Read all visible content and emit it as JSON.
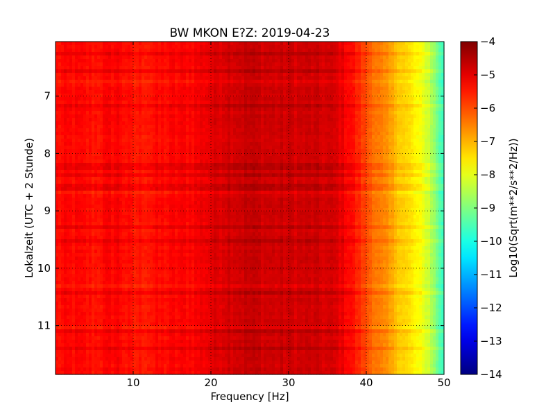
{
  "chart_data": {
    "type": "heatmap",
    "title": "BW MKON E?Z: 2019-04-23",
    "xlabel": "Frequency [Hz]",
    "ylabel": "Lokalzeit (UTC + 2 Stunde)",
    "colorbar_label": "Log10(Sqrt(m**2/s**2/Hz))",
    "xlim": [
      0,
      50
    ],
    "ylim": [
      11.85,
      6.05
    ],
    "y_inverted": true,
    "x_ticks": [
      10,
      20,
      30,
      40,
      50
    ],
    "x_tick_labels": [
      "10",
      "20",
      "30",
      "40",
      "50"
    ],
    "y_ticks": [
      7,
      8,
      9,
      10,
      11
    ],
    "y_tick_labels": [
      "7",
      "8",
      "9",
      "10",
      "11"
    ],
    "colorbar_range": [
      -14,
      -4
    ],
    "colorbar_ticks": [
      -4,
      -5,
      -6,
      -7,
      -8,
      -9,
      -10,
      -11,
      -12,
      -13,
      -14
    ],
    "colorbar_tick_labels": [
      "−4",
      "−5",
      "−6",
      "−7",
      "−8",
      "−9",
      "−10",
      "−11",
      "−12",
      "−13",
      "−14"
    ],
    "colormap": "jet",
    "grid": true,
    "frequency_profile": {
      "frequency_hz": [
        0,
        2,
        5,
        8,
        10,
        12,
        15,
        18,
        20,
        22,
        25,
        28,
        30,
        33,
        36,
        38,
        40,
        42,
        44,
        46,
        48,
        50
      ],
      "log10_amplitude": [
        -5.4,
        -5.3,
        -5.4,
        -5.2,
        -5.5,
        -5.4,
        -5.3,
        -5.2,
        -5.0,
        -4.8,
        -4.7,
        -4.8,
        -4.8,
        -4.8,
        -4.9,
        -5.3,
        -6.0,
        -6.6,
        -7.1,
        -7.6,
        -8.2,
        -9.8
      ]
    }
  }
}
